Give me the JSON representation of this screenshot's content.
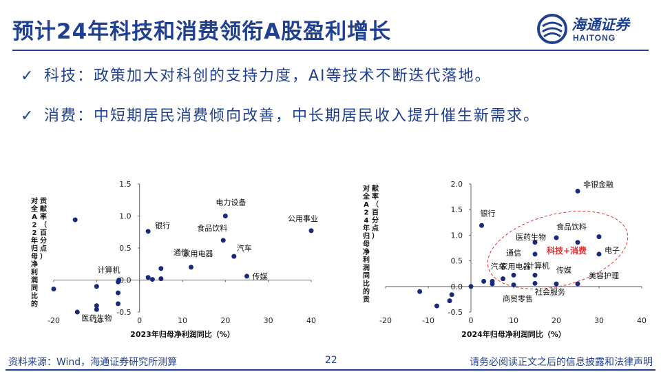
{
  "header": {
    "title": "预计24年科技和消费领衔A股盈利增长",
    "logo_cn": "海通证券",
    "logo_en": "HAITONG",
    "brand_color": "#1f3f8f"
  },
  "bullets": [
    {
      "icon": "checkmark-icon",
      "mark": "✓",
      "text": "科技：政策加大对科创的支持力度，AI等技术不断迭代落地。"
    },
    {
      "icon": "checkmark-icon",
      "mark": "✓",
      "text": "消费：中短期居民消费倾向改善，中长期居民收入提升催生新需求。"
    }
  ],
  "chart_data": [
    {
      "type": "scatter",
      "xlabel": "2023年归母净利润同比（%）",
      "ylabel": "对全A22年归母净利润同比的贡献率（百分点）",
      "xlim": [
        -20,
        40
      ],
      "ylim": [
        -0.5,
        1.5
      ],
      "xticks": [
        "-20",
        "-10",
        "0",
        "10",
        "20",
        "30",
        "40"
      ],
      "yticks": [
        "-0.5",
        "0.0",
        "0.5",
        "1.0",
        "1.5"
      ],
      "grid": false,
      "marker_color": "#1a2a7a",
      "points": [
        {
          "x": -15,
          "y": 0.94,
          "label": ""
        },
        {
          "x": -20,
          "y": -0.14,
          "label": ""
        },
        {
          "x": -14.5,
          "y": -0.5,
          "label": ""
        },
        {
          "x": -10,
          "y": -0.1,
          "label": ""
        },
        {
          "x": -10,
          "y": -0.4,
          "label": ""
        },
        {
          "x": -10,
          "y": -0.46,
          "label": "医药生物"
        },
        {
          "x": -5,
          "y": -0.2,
          "label": ""
        },
        {
          "x": -5,
          "y": -0.37,
          "label": ""
        },
        {
          "x": -5,
          "y": -0.03,
          "label": "计算机"
        },
        {
          "x": -4.8,
          "y": 0.0,
          "label": ""
        },
        {
          "x": 2,
          "y": 0.76,
          "label": "银行"
        },
        {
          "x": 2,
          "y": 0.04,
          "label": ""
        },
        {
          "x": 3,
          "y": 0.01,
          "label": ""
        },
        {
          "x": 5,
          "y": 0.18,
          "label": "通信"
        },
        {
          "x": 5,
          "y": 0.02,
          "label": ""
        },
        {
          "x": 12,
          "y": 0.2,
          "label": "家用电器"
        },
        {
          "x": 19.5,
          "y": 0.62,
          "label": "食品饮料"
        },
        {
          "x": 20,
          "y": 1.0,
          "label": "电力设备"
        },
        {
          "x": 22,
          "y": 0.37,
          "label": "汽车"
        },
        {
          "x": 25,
          "y": 0.06,
          "label": "传媒"
        },
        {
          "x": 40,
          "y": 0.77,
          "label": "公用事业"
        }
      ]
    },
    {
      "type": "scatter",
      "xlabel": "2024年归母净利润同比（%）",
      "ylabel": "对全A24年归母净利润同比的贡献率（百分点）",
      "xlim": [
        -20,
        40
      ],
      "ylim": [
        -0.5,
        2.0
      ],
      "xticks": [
        "-20",
        "-10",
        "0",
        "10",
        "20",
        "30",
        "40"
      ],
      "yticks": [
        "-0.5",
        "0.0",
        "0.5",
        "1.0",
        "1.5",
        "2.0"
      ],
      "grid": false,
      "marker_color": "#1a2a7a",
      "highlight_label": "科技+消费",
      "highlight_color": "#e03030",
      "points": [
        {
          "x": 25,
          "y": 1.86,
          "label": "非银金融"
        },
        {
          "x": 2.5,
          "y": 1.19,
          "label": "银行"
        },
        {
          "x": 20,
          "y": 0.95,
          "label": "食品饮料"
        },
        {
          "x": 30,
          "y": 0.97,
          "label": ""
        },
        {
          "x": 15,
          "y": 0.86,
          "label": "医药生物"
        },
        {
          "x": 25,
          "y": 0.86,
          "label": ""
        },
        {
          "x": 30,
          "y": 0.63,
          "label": "电子"
        },
        {
          "x": 15,
          "y": 0.63,
          "label": "通信"
        },
        {
          "x": 3,
          "y": 0.1,
          "label": "汽车"
        },
        {
          "x": 7.5,
          "y": 0.15,
          "label": "家用电器"
        },
        {
          "x": 10,
          "y": 0.22,
          "label": ""
        },
        {
          "x": 15,
          "y": 0.22,
          "label": "计算机"
        },
        {
          "x": 20,
          "y": 0.05,
          "label": "传媒"
        },
        {
          "x": 25,
          "y": 0.05,
          "label": "美容护理"
        },
        {
          "x": 15,
          "y": 0.06,
          "label": "社会服务"
        },
        {
          "x": 10,
          "y": 0.03,
          "label": "商贸零售"
        },
        {
          "x": 5,
          "y": 0.05,
          "label": ""
        },
        {
          "x": 5,
          "y": 0.1,
          "label": ""
        },
        {
          "x": 0,
          "y": 0.0,
          "label": ""
        },
        {
          "x": -12,
          "y": -0.1,
          "label": ""
        },
        {
          "x": -8,
          "y": -0.38,
          "label": ""
        },
        {
          "x": -5,
          "y": -0.28,
          "label": ""
        },
        {
          "x": -4.5,
          "y": -0.16,
          "label": ""
        }
      ]
    }
  ],
  "footer": {
    "source": "资料来源：Wind，海通证券研究所测算",
    "page": "22",
    "disclaimer": "请务必阅读正文之后的信息披露和法律声明"
  }
}
